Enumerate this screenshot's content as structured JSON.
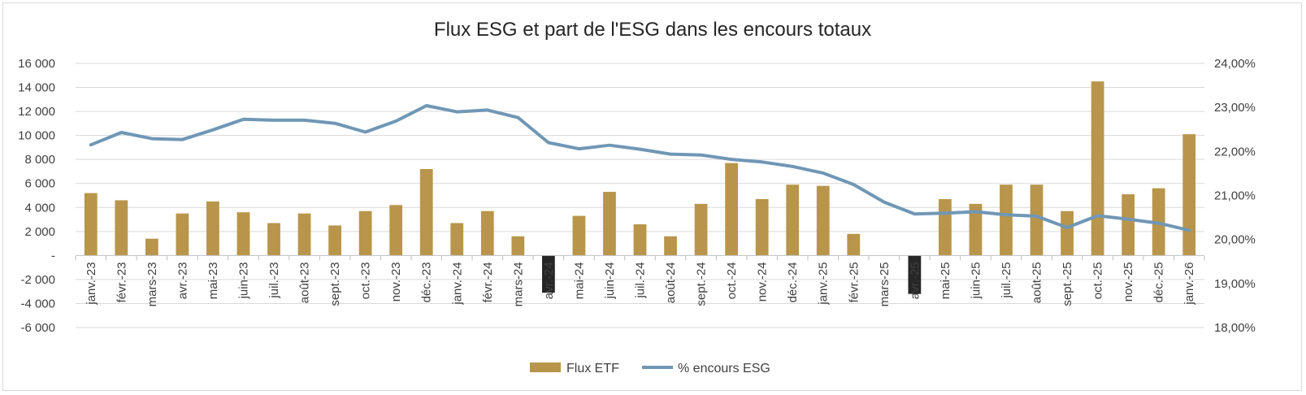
{
  "chart_data": {
    "type": "bar+line",
    "title": "Flux ESG et part de l'ESG dans les encours totaux",
    "categories": [
      "janv.-23",
      "févr.-23",
      "mars-23",
      "avr.-23",
      "mai-23",
      "juin-23",
      "juil.-23",
      "août-23",
      "sept.-23",
      "oct.-23",
      "nov.-23",
      "déc.-23",
      "janv.-24",
      "févr.-24",
      "mars-24",
      "avr.-24",
      "mai-24",
      "juin-24",
      "juil.-24",
      "août-24",
      "sept.-24",
      "oct.-24",
      "nov.-24",
      "déc.-24",
      "janv.-25",
      "févr.-25",
      "mars-25",
      "avr.-25",
      "mai-25",
      "juin-25",
      "juil.-25",
      "août-25",
      "sept.-25",
      "oct.-25",
      "nov.-25",
      "déc.-25",
      "janv.-26"
    ],
    "highlighted_categories": [
      "avr.-24",
      "avr.-25"
    ],
    "series": [
      {
        "name": "Flux ETF",
        "type": "bar",
        "axis": "left",
        "color": "#B8954A",
        "values": [
          5200,
          4600,
          1400,
          3500,
          4500,
          3600,
          2700,
          3500,
          2500,
          3700,
          4200,
          7200,
          2700,
          3700,
          1600,
          -3100,
          3300,
          5300,
          2600,
          1600,
          4300,
          7700,
          4700,
          5900,
          5800,
          1800,
          0,
          -3200,
          4700,
          4300,
          5900,
          5900,
          3700,
          14500,
          5100,
          5600,
          10100
        ]
      },
      {
        "name": "% encours ESG",
        "type": "line",
        "axis": "right",
        "color": "#7097B5",
        "values": [
          22.15,
          22.43,
          22.29,
          22.27,
          22.49,
          22.73,
          22.71,
          22.71,
          22.64,
          22.44,
          22.69,
          23.04,
          22.9,
          22.94,
          22.77,
          22.2,
          22.06,
          22.14,
          22.05,
          21.94,
          21.92,
          21.82,
          21.76,
          21.66,
          21.51,
          21.25,
          20.85,
          20.58,
          20.6,
          20.63,
          20.56,
          20.53,
          20.27,
          20.54,
          20.46,
          20.37,
          20.21
        ]
      }
    ],
    "y_left": {
      "min": -6000,
      "max": 16000,
      "step": 2000,
      "tick_labels": [
        "-6 000",
        "-4 000",
        "-2 000",
        "-",
        "2 000",
        "4 000",
        "6 000",
        "8 000",
        "10 000",
        "12 000",
        "14 000",
        "16 000"
      ]
    },
    "y_right": {
      "min": 18,
      "max": 24,
      "step": 1,
      "tick_labels": [
        "18,00%",
        "19,00%",
        "20,00%",
        "21,00%",
        "22,00%",
        "23,00%",
        "24,00%"
      ]
    },
    "gridlines": true,
    "legend_position": "bottom"
  }
}
